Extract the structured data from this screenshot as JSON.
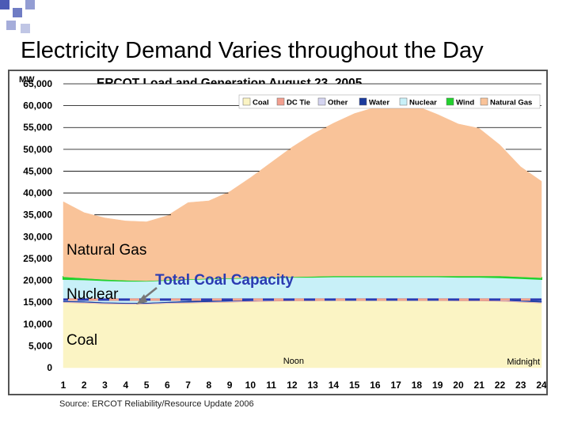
{
  "slide": {
    "title": "Electricity Demand Varies throughout the Day",
    "source": "Source: ERCOT Reliability/Resource Update 2006"
  },
  "colors": {
    "coal": "#fbf4c4",
    "dc_tie": "#f29f8f",
    "other": "#d4d4f0",
    "water": "#1a3a9c",
    "nuclear": "#c8f0f8",
    "wind": "#22d12e",
    "natural_gas": "#f9c399",
    "capacity_line": "#2b3bb2",
    "capacity_dash": "#f2a48c",
    "title_accent": "#4b5bb5"
  },
  "chart_data": {
    "type": "area",
    "title": "ERCOT Load and Generation August 23, 2005",
    "ylabel": "MW",
    "xlabel": "",
    "ylim": [
      0,
      65000
    ],
    "yticks": [
      "0",
      "5,000",
      "10,000",
      "15,000",
      "20,000",
      "25,000",
      "30,000",
      "35,000",
      "40,000",
      "45,000",
      "50,000",
      "55,000",
      "60,000",
      "65,000"
    ],
    "x": [
      1,
      2,
      3,
      4,
      5,
      6,
      7,
      8,
      9,
      10,
      11,
      12,
      13,
      14,
      15,
      16,
      17,
      18,
      19,
      20,
      21,
      22,
      23,
      24
    ],
    "xticks": [
      "1",
      "2",
      "3",
      "4",
      "5",
      "6",
      "7",
      "8",
      "9",
      "10",
      "11",
      "12",
      "13",
      "14",
      "15",
      "16",
      "17",
      "18",
      "19",
      "20",
      "21",
      "22",
      "23",
      "24"
    ],
    "legend": [
      "Coal",
      "DC Tie",
      "Other",
      "Water",
      "Nuclear",
      "Wind",
      "Natural Gas"
    ],
    "legend_position": "top-right",
    "stack_tops": {
      "coal": [
        14900,
        14800,
        14600,
        14500,
        14500,
        14700,
        14800,
        14900,
        15000,
        15100,
        15200,
        15300,
        15300,
        15400,
        15400,
        15400,
        15400,
        15400,
        15400,
        15300,
        15300,
        15200,
        15000,
        14800
      ],
      "dc_tie": [
        15000,
        14900,
        14700,
        14600,
        14600,
        14800,
        14900,
        15000,
        15100,
        15200,
        15300,
        15400,
        15400,
        15500,
        15500,
        15500,
        15500,
        15500,
        15500,
        15400,
        15400,
        15300,
        15100,
        14900
      ],
      "other": [
        15100,
        15000,
        14800,
        14700,
        14700,
        14900,
        15000,
        15100,
        15200,
        15300,
        15400,
        15500,
        15500,
        15600,
        15600,
        15600,
        15600,
        15600,
        15600,
        15500,
        15500,
        15400,
        15200,
        15000
      ],
      "water": [
        15300,
        15200,
        15000,
        14900,
        14900,
        15100,
        15300,
        15400,
        15500,
        15600,
        15700,
        15800,
        15800,
        15900,
        15900,
        15900,
        15900,
        15900,
        15900,
        15800,
        15800,
        15700,
        15500,
        15300
      ],
      "nuclear": [
        20300,
        20200,
        20000,
        19900,
        19900,
        20100,
        20300,
        20400,
        20500,
        20600,
        20700,
        20800,
        20800,
        20900,
        20900,
        20900,
        20900,
        20900,
        20900,
        20800,
        20800,
        20700,
        20500,
        20300
      ],
      "wind": [
        20800,
        20500,
        20200,
        20000,
        19900,
        20100,
        20300,
        20400,
        20500,
        20600,
        20700,
        20800,
        20900,
        21000,
        21000,
        21000,
        21000,
        21000,
        21000,
        21000,
        21000,
        21000,
        20800,
        20600
      ],
      "natural_gas": [
        38000,
        35500,
        34300,
        33600,
        33400,
        34800,
        37800,
        38200,
        40300,
        43500,
        47000,
        50500,
        53500,
        56000,
        58200,
        59600,
        60200,
        59900,
        58000,
        55800,
        54800,
        51000,
        46000,
        42700
      ]
    },
    "total_coal_capacity": 15600,
    "annotations": {
      "natural_gas": "Natural Gas",
      "nuclear": "Nuclear",
      "coal": "Coal",
      "capacity": "Total Coal Capacity",
      "noon": "Noon",
      "midnight": "Midnight"
    }
  }
}
